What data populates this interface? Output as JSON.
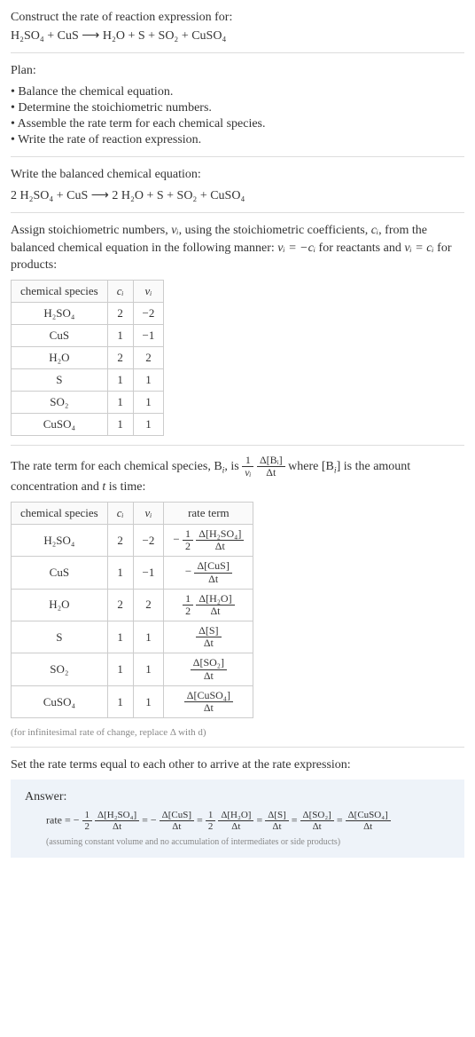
{
  "title": "Construct the rate of reaction expression for:",
  "equation_unbalanced": "H₂SO₄ + CuS ⟶ H₂O + S + SO₂ + CuSO₄",
  "plan_label": "Plan:",
  "plan_items": [
    "• Balance the chemical equation.",
    "• Determine the stoichiometric numbers.",
    "• Assemble the rate term for each chemical species.",
    "• Write the rate of reaction expression."
  ],
  "balanced_label": "Write the balanced chemical equation:",
  "equation_balanced": "2 H₂SO₄ + CuS ⟶ 2 H₂O + S + SO₂ + CuSO₄",
  "assign_text_1": "Assign stoichiometric numbers, ",
  "assign_text_2": ", using the stoichiometric coefficients, ",
  "assign_text_3": ", from the balanced chemical equation in the following manner: ",
  "assign_text_4": " for reactants and ",
  "assign_text_5": " for products:",
  "nu_i": "νᵢ",
  "c_i": "cᵢ",
  "nu_eq_neg_c": "νᵢ = −cᵢ",
  "nu_eq_c": "νᵢ = cᵢ",
  "table1": {
    "headers": [
      "chemical species",
      "cᵢ",
      "νᵢ"
    ],
    "rows": [
      {
        "species": "H₂SO₄",
        "c": "2",
        "nu": "−2"
      },
      {
        "species": "CuS",
        "c": "1",
        "nu": "−1"
      },
      {
        "species": "H₂O",
        "c": "2",
        "nu": "2"
      },
      {
        "species": "S",
        "c": "1",
        "nu": "1"
      },
      {
        "species": "SO₂",
        "c": "1",
        "nu": "1"
      },
      {
        "species": "CuSO₄",
        "c": "1",
        "nu": "1"
      }
    ]
  },
  "rate_term_text_1": "The rate term for each chemical species, B",
  "rate_term_text_2": ", is ",
  "rate_term_text_3": " where [B",
  "rate_term_text_4": "] is the amount concentration and ",
  "rate_term_text_5": " is time:",
  "t_var": "t",
  "i_sub": "i",
  "one_over_nu": {
    "num": "1",
    "den": "νᵢ"
  },
  "dB_dt": {
    "num": "Δ[Bᵢ]",
    "den": "Δt"
  },
  "table2": {
    "headers": [
      "chemical species",
      "cᵢ",
      "νᵢ",
      "rate term"
    ],
    "rows": [
      {
        "species": "H₂SO₄",
        "c": "2",
        "nu": "−2",
        "pre": "−",
        "coef_num": "1",
        "coef_den": "2",
        "d_num": "Δ[H₂SO₄]",
        "d_den": "Δt"
      },
      {
        "species": "CuS",
        "c": "1",
        "nu": "−1",
        "pre": "−",
        "coef_num": "",
        "coef_den": "",
        "d_num": "Δ[CuS]",
        "d_den": "Δt"
      },
      {
        "species": "H₂O",
        "c": "2",
        "nu": "2",
        "pre": "",
        "coef_num": "1",
        "coef_den": "2",
        "d_num": "Δ[H₂O]",
        "d_den": "Δt"
      },
      {
        "species": "S",
        "c": "1",
        "nu": "1",
        "pre": "",
        "coef_num": "",
        "coef_den": "",
        "d_num": "Δ[S]",
        "d_den": "Δt"
      },
      {
        "species": "SO₂",
        "c": "1",
        "nu": "1",
        "pre": "",
        "coef_num": "",
        "coef_den": "",
        "d_num": "Δ[SO₂]",
        "d_den": "Δt"
      },
      {
        "species": "CuSO₄",
        "c": "1",
        "nu": "1",
        "pre": "",
        "coef_num": "",
        "coef_den": "",
        "d_num": "Δ[CuSO₄]",
        "d_den": "Δt"
      }
    ]
  },
  "infinitesimal_note": "(for infinitesimal rate of change, replace Δ with d)",
  "set_equal_text": "Set the rate terms equal to each other to arrive at the rate expression:",
  "answer_label": "Answer:",
  "rate_label": "rate = ",
  "rate_terms": [
    {
      "pre": "−",
      "coef_num": "1",
      "coef_den": "2",
      "d_num": "Δ[H₂SO₄]",
      "d_den": "Δt"
    },
    {
      "pre": "−",
      "coef_num": "",
      "coef_den": "",
      "d_num": "Δ[CuS]",
      "d_den": "Δt"
    },
    {
      "pre": "",
      "coef_num": "1",
      "coef_den": "2",
      "d_num": "Δ[H₂O]",
      "d_den": "Δt"
    },
    {
      "pre": "",
      "coef_num": "",
      "coef_den": "",
      "d_num": "Δ[S]",
      "d_den": "Δt"
    },
    {
      "pre": "",
      "coef_num": "",
      "coef_den": "",
      "d_num": "Δ[SO₂]",
      "d_den": "Δt"
    },
    {
      "pre": "",
      "coef_num": "",
      "coef_den": "",
      "d_num": "Δ[CuSO₄]",
      "d_den": "Δt"
    }
  ],
  "eq_sep": " = ",
  "assume_note": "(assuming constant volume and no accumulation of intermediates or side products)",
  "colors": {
    "text": "#333333",
    "border": "#cccccc",
    "hr": "#dddddd",
    "note": "#888888",
    "answer_bg": "#eef3f9",
    "background": "#ffffff"
  }
}
